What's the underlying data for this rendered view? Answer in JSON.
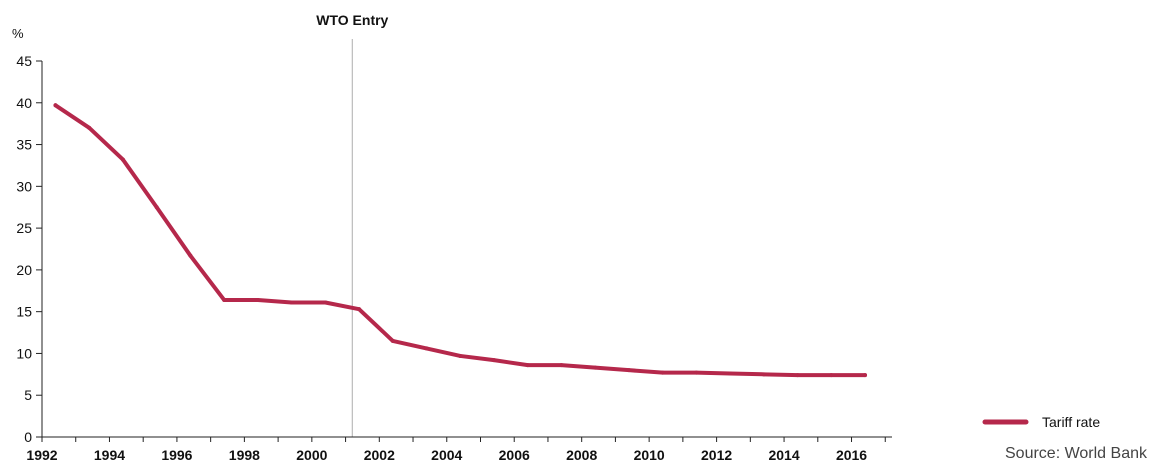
{
  "chart_data": {
    "type": "line",
    "title": "",
    "xlabel": "",
    "ylabel": "%",
    "xlim": [
      1992,
      2017.2
    ],
    "ylim": [
      0,
      45
    ],
    "yticks": [
      0,
      5,
      10,
      15,
      20,
      25,
      30,
      35,
      40,
      45
    ],
    "xticks": [
      "1992",
      "1994",
      "1996",
      "1998",
      "2000",
      "2002",
      "2004",
      "2006",
      "2008",
      "2010",
      "2012",
      "2014",
      "2016"
    ],
    "grid": false,
    "legend_position": "bottom-right",
    "colors": {
      "series": "#b5284b",
      "annotation_line": "#bbbbbb",
      "axis": "#222222"
    },
    "series": [
      {
        "name": "Tariff rate",
        "x": [
          1992.4,
          1993.4,
          1994.4,
          1995.4,
          1996.4,
          1997.4,
          1998.4,
          1999.4,
          2000.4,
          2001.4,
          2002.4,
          2003.4,
          2004.4,
          2005.4,
          2006.4,
          2007.4,
          2008.4,
          2009.4,
          2010.4,
          2011.4,
          2012.4,
          2013.4,
          2014.4,
          2015.4,
          2016.4
        ],
        "values": [
          39.7,
          37.0,
          33.2,
          27.5,
          21.7,
          16.4,
          16.4,
          16.1,
          16.1,
          15.3,
          11.5,
          10.6,
          9.7,
          9.2,
          8.6,
          8.6,
          8.3,
          8.0,
          7.7,
          7.7,
          7.6,
          7.5,
          7.4,
          7.4,
          7.4
        ]
      }
    ],
    "annotations": [
      {
        "label": "WTO Entry",
        "x": 2001.2
      }
    ],
    "source": "Source: World Bank"
  }
}
